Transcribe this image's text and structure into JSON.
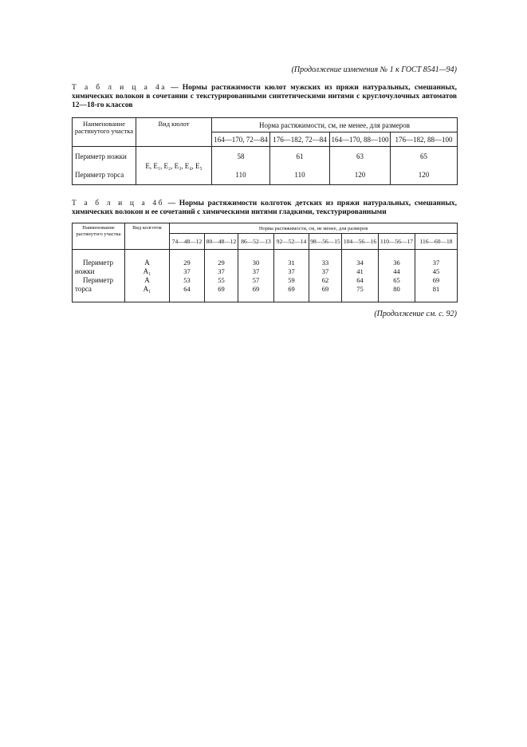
{
  "header_continuation": "(Продолжение изменения № 1 к ГОСТ 8541—94)",
  "table_4a": {
    "label": "Т а б л и ц а  4а",
    "title": " — Нормы растяжимости кюлот мужских из пряжи натуральных, смешанных, химических волокон  в сочетании с текстурированными синтетическими нитями с круглочулочных автоматов 12—18-го классов",
    "col_name": "Наименование растянутого участка",
    "col_type": "Вид кюлот",
    "col_norm": "Норма растяжимости, см, не менее, для размеров",
    "sizes": [
      "164—170, 72—84",
      "176—182, 72—84",
      "164—170, 88—100",
      "176—182, 88—100"
    ],
    "type_value": "Е, Е₁, Е₂, Е₃, Е₄, Е₅",
    "rows": [
      {
        "name": "Периметр ножки",
        "values": [
          "58",
          "61",
          "63",
          "65"
        ]
      },
      {
        "name": "Периметр торса",
        "values": [
          "110",
          "110",
          "120",
          "120"
        ]
      }
    ]
  },
  "table_4b": {
    "label": "Т а б л и ц а  4б",
    "title": " — Нормы растяжимости колготок детских из пряжи натуральных, смешанных, химических волокон и ее сочетаний с химическими нитями гладкими, текстурированными",
    "col_name": "Наименование растянутого участка",
    "col_type": "Вид колготок",
    "col_norm": "Норма растяжимости, см, не менее, для размеров",
    "sizes": [
      "74—48—12",
      "80—48—12",
      "86—52—13",
      "92—52—14",
      "98—56—15",
      "104—56—16",
      "110—56—17",
      "116—60—18"
    ],
    "name_lines": [
      "Периметр",
      "ножки",
      "Периметр",
      "торса"
    ],
    "types": [
      "А",
      "А₁",
      "А",
      "А₁"
    ],
    "rows": [
      [
        "29",
        "29",
        "30",
        "31",
        "33",
        "34",
        "36",
        "37"
      ],
      [
        "37",
        "37",
        "37",
        "37",
        "37",
        "41",
        "44",
        "45"
      ],
      [
        "53",
        "55",
        "57",
        "59",
        "62",
        "64",
        "65",
        "69"
      ],
      [
        "64",
        "69",
        "69",
        "69",
        "69",
        "75",
        "80",
        "81"
      ]
    ]
  },
  "footer_continuation": "(Продолжение см. с. 92)"
}
